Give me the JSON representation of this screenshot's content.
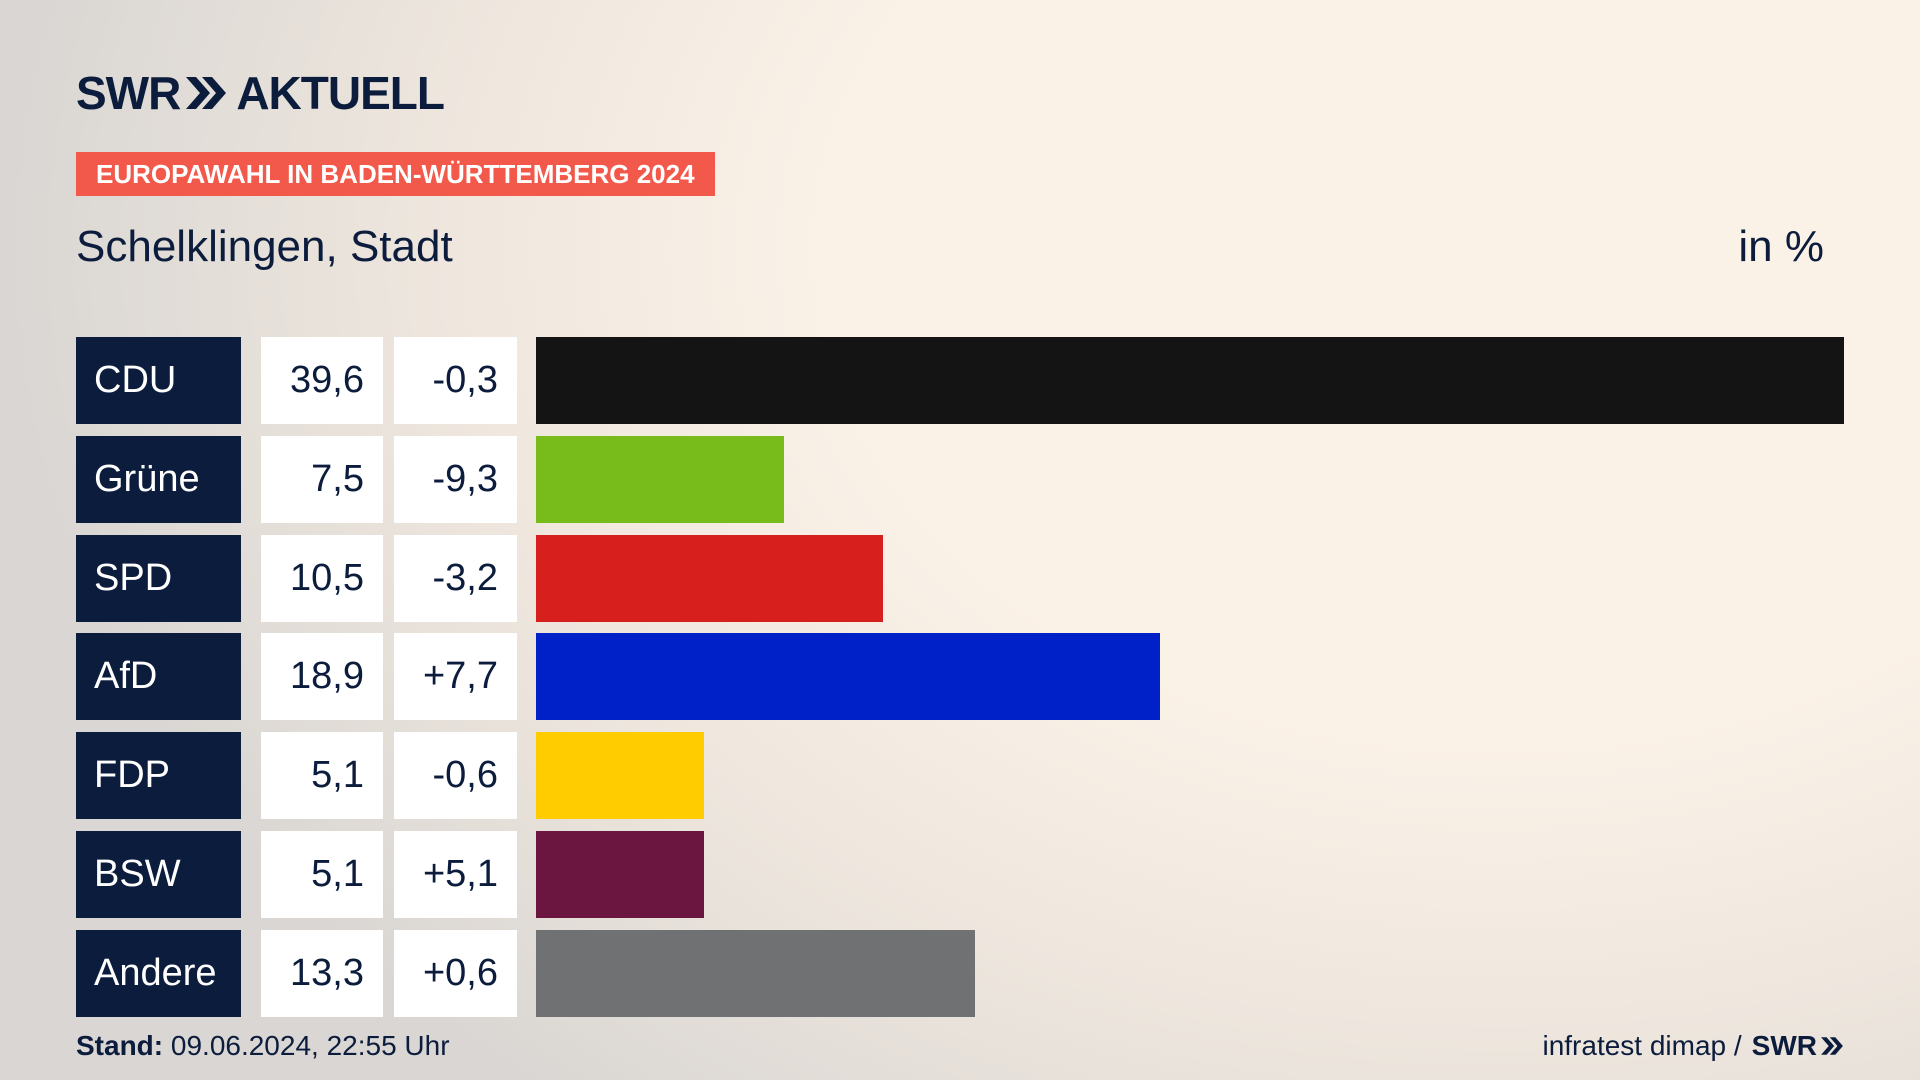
{
  "brand": "SWR",
  "brand_sub": "AKTUELL",
  "banner": "EUROPAWAHL IN BADEN-WÜRTTEMBERG 2024",
  "chart_data": {
    "type": "bar",
    "orientation": "horizontal",
    "title": "Schelklingen, Stadt",
    "unit_label": "in %",
    "categories": [
      "CDU",
      "Grüne",
      "SPD",
      "AfD",
      "FDP",
      "BSW",
      "Andere"
    ],
    "values": [
      39.6,
      7.5,
      10.5,
      18.9,
      5.1,
      5.1,
      13.3
    ],
    "value_labels": [
      "39,6",
      "7,5",
      "10,5",
      "18,9",
      "5,1",
      "5,1",
      "13,3"
    ],
    "changes": [
      -0.3,
      -9.3,
      -3.2,
      7.7,
      -0.6,
      5.1,
      0.6
    ],
    "change_labels": [
      "-0,3",
      "-9,3",
      "-3,2",
      "+7,7",
      "-0,6",
      "+5,1",
      "+0,6"
    ],
    "colors": [
      "#141414",
      "#78bc1b",
      "#d71f1d",
      "#0021c8",
      "#ffcc00",
      "#6b1640",
      "#707173"
    ],
    "xlim": [
      0,
      39.6
    ]
  },
  "footer": {
    "stand_label": "Stand:",
    "stand_value": "09.06.2024, 22:55 Uhr",
    "source": "infratest dimap /",
    "source_brand": "SWR"
  }
}
